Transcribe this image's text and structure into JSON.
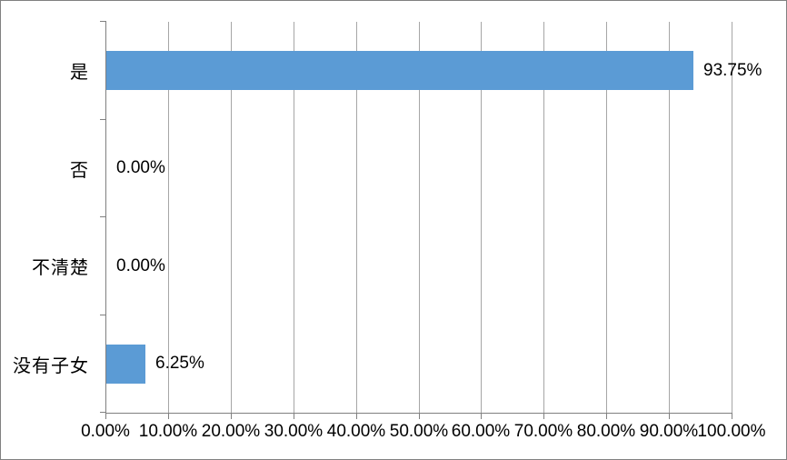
{
  "chart_data": {
    "type": "bar",
    "orientation": "horizontal",
    "title": "",
    "xlabel": "",
    "ylabel": "",
    "categories": [
      "是",
      "否",
      "不清楚",
      "没有子女"
    ],
    "values": [
      93.75,
      0,
      0,
      6.25
    ],
    "data_labels": [
      "93.75%",
      "0.00%",
      "0.00%",
      "6.25%"
    ],
    "x_tick_labels": [
      "0.00%",
      "10.00%",
      "20.00%",
      "30.00%",
      "40.00%",
      "50.00%",
      "60.00%",
      "70.00%",
      "80.00%",
      "90.00%",
      "100.00%"
    ],
    "xlim": [
      0,
      100
    ],
    "grid": "vertical gridlines every 10%",
    "legend": "none",
    "colors": {
      "bar": "#5B9BD5",
      "gridline": "#A6A6A6",
      "axis": "#808080",
      "tick": "#808080",
      "text": "#000000",
      "background": "#FFFFFF",
      "border": "#808080"
    }
  }
}
